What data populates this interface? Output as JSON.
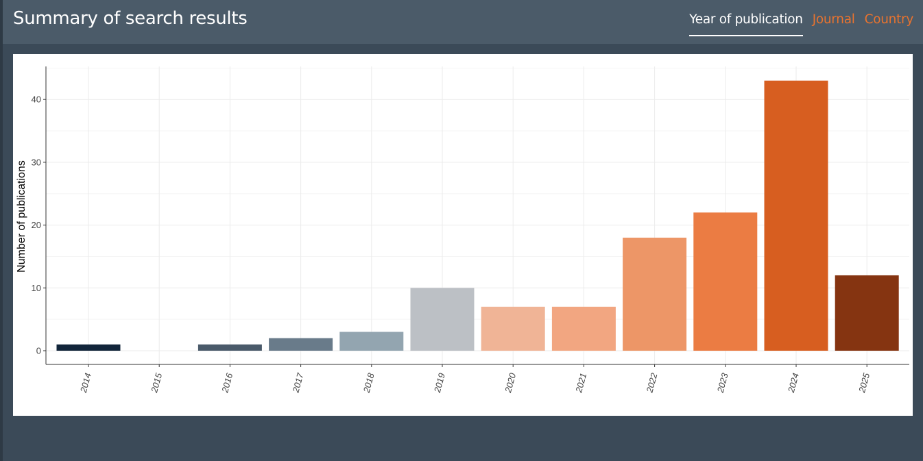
{
  "header": {
    "title": "Summary of search results",
    "tabs": [
      {
        "label": "Year of publication",
        "active": true
      },
      {
        "label": "Journal",
        "active": false
      },
      {
        "label": "Country",
        "active": false
      }
    ]
  },
  "colors": {
    "accent": "#e8732f",
    "header_bg": "#4b5b69",
    "page_bg": "#3b4a58"
  },
  "chart_data": {
    "type": "bar",
    "title": "",
    "xlabel": "",
    "ylabel": "Number of publications",
    "ylim": [
      0,
      44
    ],
    "yticks": [
      0,
      10,
      20,
      30,
      40
    ],
    "grid": true,
    "categories": [
      "2014",
      "2015",
      "2016",
      "2017",
      "2018",
      "2019",
      "2020",
      "2021",
      "2022",
      "2023",
      "2024",
      "2025"
    ],
    "values": [
      1,
      0,
      1,
      2,
      3,
      10,
      7,
      7,
      18,
      22,
      43,
      12
    ],
    "colors": [
      "#12253a",
      "#2a3a4c",
      "#4a5a6a",
      "#697b8a",
      "#93a5b0",
      "#bcc0c5",
      "#f0b496",
      "#f2a681",
      "#ed9667",
      "#eb7c43",
      "#d75e20",
      "#853411"
    ]
  }
}
